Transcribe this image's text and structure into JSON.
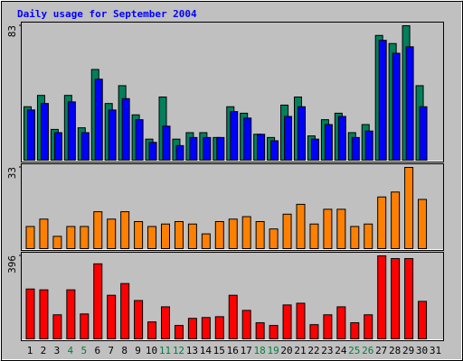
{
  "chart_data": [
    {
      "type": "bar",
      "title": "Daily usage for September 2004",
      "categories": [
        "1",
        "2",
        "3",
        "4",
        "5",
        "6",
        "7",
        "8",
        "9",
        "10",
        "11",
        "12",
        "13",
        "14",
        "15",
        "16",
        "17",
        "18",
        "19",
        "20",
        "21",
        "22",
        "23",
        "24",
        "25",
        "26",
        "27",
        "28",
        "29",
        "30",
        "31"
      ],
      "category_colors": [
        "#000000",
        "#000000",
        "#000000",
        "#008040",
        "#008040",
        "#000000",
        "#000000",
        "#000000",
        "#000000",
        "#000000",
        "#008040",
        "#008040",
        "#000000",
        "#000000",
        "#000000",
        "#000000",
        "#000000",
        "#008040",
        "#008040",
        "#000000",
        "#000000",
        "#000000",
        "#000000",
        "#000000",
        "#008040",
        "#008040",
        "#000000",
        "#000000",
        "#000000",
        "#000000",
        "#000000"
      ],
      "ylim": [
        0,
        83
      ],
      "yticks": [
        83
      ],
      "series": [
        {
          "color": "#00805c",
          "values": [
            33,
            40,
            19,
            40,
            20,
            56,
            35,
            46,
            28,
            13,
            39,
            13,
            17,
            17,
            14,
            33,
            29,
            16,
            14,
            34,
            39,
            15,
            25,
            29,
            17,
            22,
            77,
            72,
            83,
            46,
            null
          ]
        },
        {
          "color": "#0000ff",
          "values": [
            31,
            35,
            17,
            36,
            17,
            50,
            31,
            38,
            25,
            11,
            21,
            9,
            14,
            14,
            14,
            30,
            26,
            16,
            12,
            27,
            33,
            13,
            22,
            27,
            14,
            18,
            74,
            66,
            70,
            33,
            null
          ]
        }
      ]
    },
    {
      "type": "bar",
      "ylim": [
        0,
        33
      ],
      "yticks": [
        33
      ],
      "series": [
        {
          "color": "#ff8000",
          "values": [
            9,
            12,
            5,
            9,
            9,
            15,
            12,
            15,
            11,
            9,
            10,
            11,
            10,
            6,
            11,
            12,
            13,
            11,
            8,
            14,
            18,
            10,
            16,
            16,
            9,
            10,
            21,
            23,
            33,
            20,
            null
          ]
        }
      ]
    },
    {
      "type": "bar",
      "ylim": [
        0,
        396
      ],
      "yticks": [
        396
      ],
      "series": [
        {
          "color": "#ff0000",
          "values": [
            238,
            234,
            115,
            234,
            119,
            358,
            208,
            264,
            183,
            81,
            153,
            64,
            98,
            102,
            106,
            208,
            136,
            77,
            64,
            162,
            170,
            68,
            115,
            153,
            77,
            115,
            396,
            383,
            383,
            179,
            null
          ]
        }
      ]
    }
  ]
}
